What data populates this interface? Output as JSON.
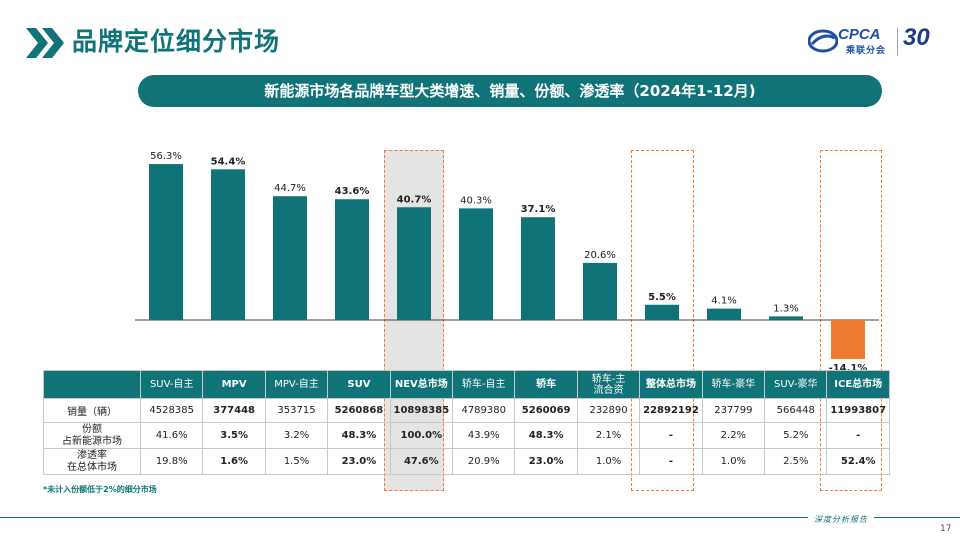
{
  "header": {
    "title": "品牌定位细分市场",
    "logo_text": "CPCA",
    "logo_cn": "乘联分会",
    "logo_anniv": "30"
  },
  "banner": "新能源市场各品牌车型大类增速、销量、份额、渗透率（2024年1-12月)",
  "chart_data": {
    "type": "bar",
    "categories": [
      "SUV-自主",
      "MPV",
      "MPV-自主",
      "SUV",
      "NEV总市场",
      "轿车-自主",
      "轿车",
      "轿车-主流合资",
      "整体总市场",
      "轿车-豪华",
      "SUV-豪华",
      "ICE总市场"
    ],
    "values": [
      56.3,
      54.4,
      44.7,
      43.6,
      40.7,
      40.3,
      37.1,
      20.6,
      5.5,
      4.1,
      1.3,
      -14.1
    ],
    "data_labels": [
      "56.3%",
      "54.4%",
      "44.7%",
      "43.6%",
      "40.7%",
      "40.3%",
      "37.1%",
      "20.6%",
      "5.5%",
      "4.1%",
      "1.3%",
      "-14.1%"
    ],
    "bold_labels": [
      false,
      true,
      false,
      true,
      true,
      false,
      true,
      false,
      true,
      false,
      false,
      true
    ],
    "ylim": [
      -15,
      60
    ],
    "title": "",
    "xlabel": "",
    "ylabel": "",
    "colors": {
      "positive": "#0f7377",
      "negative": "#ee7d31"
    }
  },
  "table": {
    "headers": [
      "SUV-自主",
      "MPV",
      "MPV-自主",
      "SUV",
      "NEV总市场",
      "轿车-自主",
      "轿车",
      "轿车-主\n流合资",
      "整体总市场",
      "轿车-豪华",
      "SUV-豪华",
      "ICE总市场"
    ],
    "bold_cols": [
      false,
      true,
      false,
      true,
      true,
      false,
      true,
      false,
      true,
      false,
      false,
      true
    ],
    "rows": [
      {
        "label": "销量（辆）",
        "values": [
          "4528385",
          "377448",
          "353715",
          "5260868",
          "10898385",
          "4789380",
          "5260069",
          "232890",
          "22892192",
          "237799",
          "566448",
          "11993807"
        ]
      },
      {
        "label": "份额\n占新能源市场",
        "values": [
          "41.6%",
          "3.5%",
          "3.2%",
          "48.3%",
          "100.0%",
          "43.9%",
          "48.3%",
          "2.1%",
          "-",
          "2.2%",
          "5.2%",
          "-"
        ]
      },
      {
        "label": "渗透率\n在总体市场",
        "values": [
          "19.8%",
          "1.6%",
          "1.5%",
          "23.0%",
          "47.6%",
          "20.9%",
          "23.0%",
          "1.0%",
          "-",
          "1.0%",
          "2.5%",
          "52.4%"
        ]
      }
    ]
  },
  "footnote": "*未计入份额低于2%的细分市场",
  "footer": {
    "brand": "深度分析报告",
    "page": "17"
  },
  "colors": {
    "brand": "#0f7377",
    "accent": "#ee7d31"
  }
}
